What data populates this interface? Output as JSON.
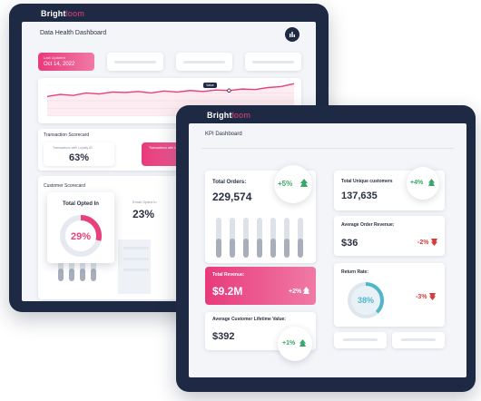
{
  "back": {
    "brand_a": "Bright",
    "brand_b": "loom",
    "title": "Data Health Dashboard",
    "date_label": "Last Updated",
    "date_value": "Oct 14, 2022",
    "chart_tooltip": "Value",
    "transaction_title": "Transaction Scorecard",
    "transaction_left_label": "Transactions with Loyalty ID",
    "transaction_left_value": "63%",
    "transaction_right_label": "Transactions with Loyalty ID",
    "transaction_right_value": "29",
    "customer_title": "Customer Scorecard",
    "opted_in_title": "Total Opted In",
    "opted_in_value": "29%",
    "email_opted_label": "Email Opted In",
    "email_opted_value": "23%"
  },
  "front": {
    "brand_a": "Bright",
    "brand_b": "loom",
    "title": "KPI Dashboard",
    "total_orders_label": "Total Orders:",
    "total_orders_value": "229,574",
    "total_orders_change": "+5%",
    "unique_customers_label": "Total Unique customers",
    "unique_customers_value": "137,635",
    "unique_customers_change": "+4%",
    "aov_label": "Average Order Revenue:",
    "aov_value": "$36",
    "aov_change": "-2%",
    "revenue_label": "Total Revenue:",
    "revenue_value": "$9.2M",
    "revenue_change": "+2%",
    "return_label": "Return Rate:",
    "return_value": "38%",
    "return_change": "-3%",
    "clv_label": "Average Customer Lifetime Value:",
    "clv_value": "$392",
    "clv_change": "+1%"
  },
  "colors": {
    "navy": "#1e2a44",
    "pink": "#e8407a",
    "green": "#3aa66b",
    "red": "#d63a3a",
    "teal": "#4fb6cc"
  },
  "chart_data": {
    "type": "line",
    "title": "",
    "x": [
      1,
      2,
      3,
      4,
      5,
      6,
      7,
      8,
      9,
      10,
      11,
      12,
      13,
      14,
      15,
      16,
      17,
      18,
      19,
      20
    ],
    "series": [
      {
        "values": [
          48,
          52,
          50,
          55,
          53,
          57,
          56,
          58,
          55,
          59,
          57,
          60,
          58,
          61,
          60,
          63,
          62,
          66,
          68,
          74
        ]
      }
    ],
    "ylim": [
      0,
      100
    ],
    "grid": true
  },
  "opted_in_percent": 29,
  "return_rate_percent": 38
}
